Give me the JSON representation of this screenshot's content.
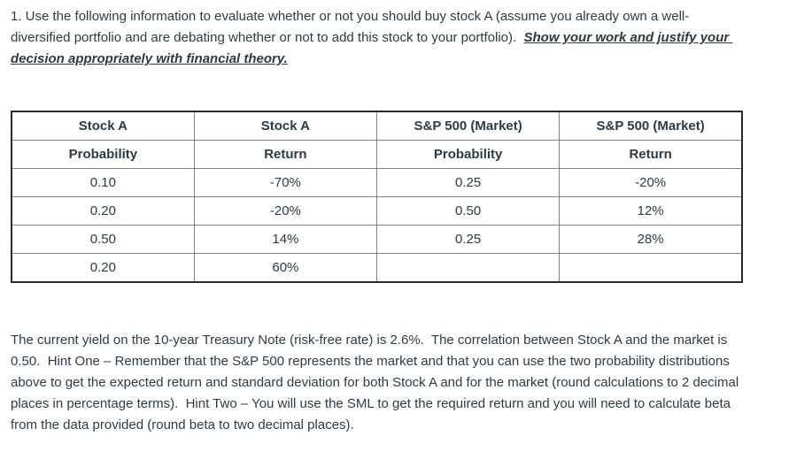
{
  "question": {
    "intro": "1. Use the following information to evaluate whether or not you should buy stock A (assume you already own a well-diversified portfolio and are debating whether or not to add this stock to your portfolio).  ",
    "emphasis": "Show your work and justify your decision appropriately with financial theory."
  },
  "table": {
    "groups": [
      "Stock A",
      "Stock A",
      "S&P 500 (Market)",
      "S&P 500 (Market)"
    ],
    "headers": [
      "Probability",
      "Return",
      "Probability",
      "Return"
    ],
    "rows": [
      [
        "0.10",
        "-70%",
        "0.25",
        "-20%"
      ],
      [
        "0.20",
        "-20%",
        "0.50",
        "12%"
      ],
      [
        "0.50",
        "14%",
        "0.25",
        "28%"
      ],
      [
        "0.20",
        "60%",
        "",
        ""
      ]
    ]
  },
  "instructions": "The current yield on the 10-year Treasury Note (risk-free rate) is 2.6%.  The correlation between Stock A and the market is 0.50.  Hint One – Remember that the S&P 500 represents the market and that you can use the two probability distributions above to get the expected return and standard deviation for both Stock A and for the market (round calculations to 2 decimal places in percentage terms).  Hint Two – You will use the SML to get the required return and you will need to calculate beta from the data provided (round beta to two decimal places).",
  "colors": {
    "text": "#2D3B45",
    "table_outer_border": "#2b2b2b",
    "table_inner_border": "#818181",
    "background": "#ffffff"
  }
}
